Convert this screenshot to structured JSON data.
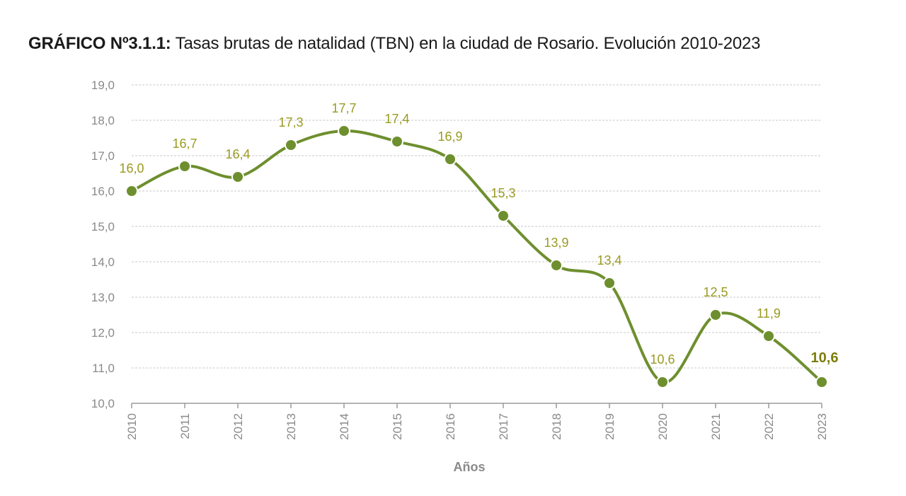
{
  "title": {
    "prefix": "GRÁFICO Nº3.1.1:",
    "text": " Tasas brutas de natalidad (TBN) en la ciudad de Rosario. Evolución 2010-2023"
  },
  "chart_data": {
    "type": "line",
    "title": "GRÁFICO Nº3.1.1: Tasas brutas de natalidad (TBN) en la ciudad de Rosario. Evolución 2010-2023",
    "xlabel": "Años",
    "ylabel": "",
    "ylim": [
      10,
      19
    ],
    "yticks": [
      "10,0",
      "11,0",
      "12,0",
      "13,0",
      "14,0",
      "15,0",
      "16,0",
      "17,0",
      "18,0",
      "19,0"
    ],
    "x": [
      "2010",
      "2011",
      "2012",
      "2013",
      "2014",
      "2015",
      "2016",
      "2017",
      "2018",
      "2019",
      "2020",
      "2021",
      "2022",
      "2023"
    ],
    "series": [
      {
        "name": "TBN",
        "values": [
          16.0,
          16.7,
          16.4,
          17.3,
          17.7,
          17.4,
          16.9,
          15.3,
          13.9,
          13.4,
          10.6,
          12.5,
          11.9,
          10.6
        ],
        "labels": [
          "16,0",
          "16,7",
          "16,4",
          "17,3",
          "17,7",
          "17,4",
          "16,9",
          "15,3",
          "13,9",
          "13,4",
          "10,6",
          "12,5",
          "11,9",
          "10,6"
        ]
      }
    ],
    "grid": true,
    "colors": {
      "line": "#6e8f2e",
      "label": "#9a9a22",
      "last_label": "#7d7d0c",
      "grid": "#c8c8c8",
      "axis": "#9a9a9a"
    }
  }
}
